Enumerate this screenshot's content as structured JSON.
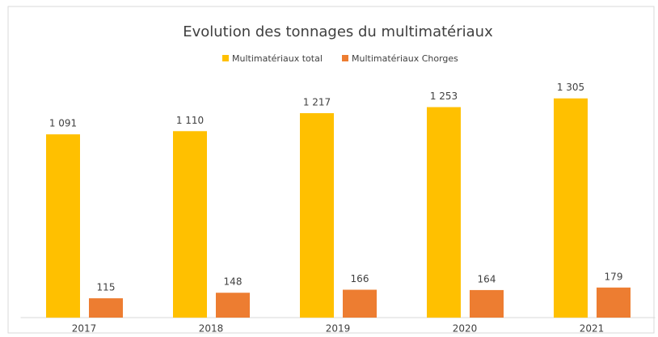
{
  "chart_data": {
    "type": "bar",
    "title": "Evolution des tonnages du multimatériaux",
    "categories": [
      "2017",
      "2018",
      "2019",
      "2020",
      "2021"
    ],
    "series": [
      {
        "name": "Multimatériaux total",
        "color": "#FFC000",
        "values": [
          1091,
          1110,
          1217,
          1253,
          1305
        ],
        "value_labels": [
          "1 091",
          "1 110",
          "1 217",
          "1 253",
          "1 305"
        ]
      },
      {
        "name": "Multimatériaux Chorges",
        "color": "#ED7D31",
        "values": [
          115,
          148,
          166,
          164,
          179
        ]
      }
    ],
    "ylim": [
      0,
      1400
    ],
    "legend": "top"
  }
}
